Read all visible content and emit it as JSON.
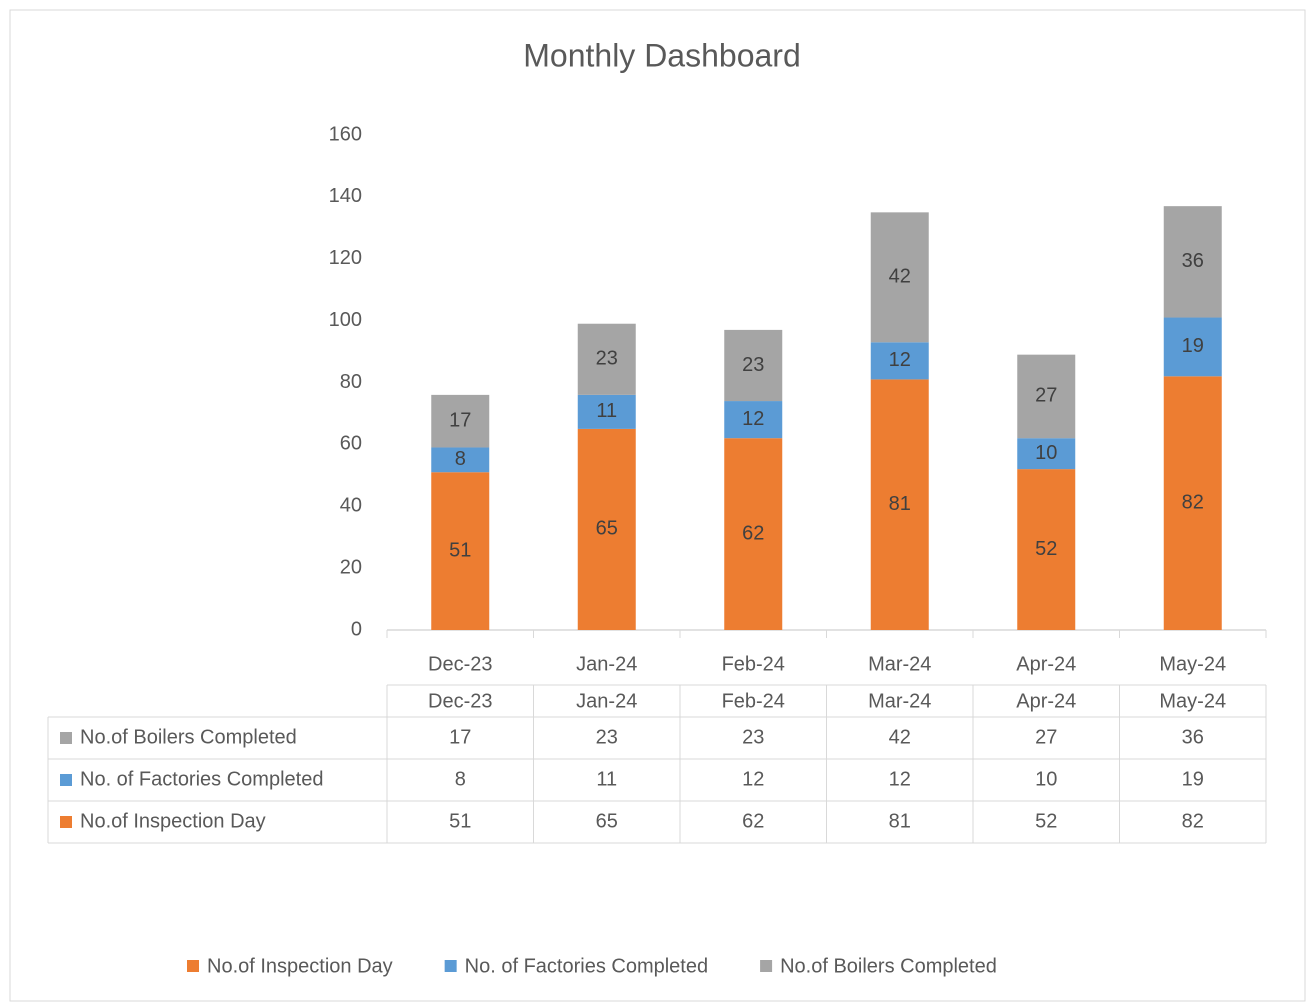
{
  "chart_data": {
    "type": "bar",
    "stacked": true,
    "title": "Monthly Dashboard",
    "categories": [
      "Dec-23",
      "Jan-24",
      "Feb-24",
      "Mar-24",
      "Apr-24",
      "May-24"
    ],
    "series": [
      {
        "name": "No.of Inspection Day",
        "color": "#ED7D31",
        "values": [
          51,
          65,
          62,
          81,
          52,
          82
        ]
      },
      {
        "name": "No. of Factories Completed",
        "color": "#5B9BD5",
        "values": [
          8,
          11,
          12,
          12,
          10,
          19
        ]
      },
      {
        "name": "No.of Boilers Completed",
        "color": "#A5A5A5",
        "values": [
          17,
          23,
          23,
          42,
          27,
          36
        ]
      }
    ],
    "ylim": [
      0,
      160
    ],
    "yticks": [
      0,
      20,
      40,
      60,
      80,
      100,
      120,
      140,
      160
    ]
  }
}
